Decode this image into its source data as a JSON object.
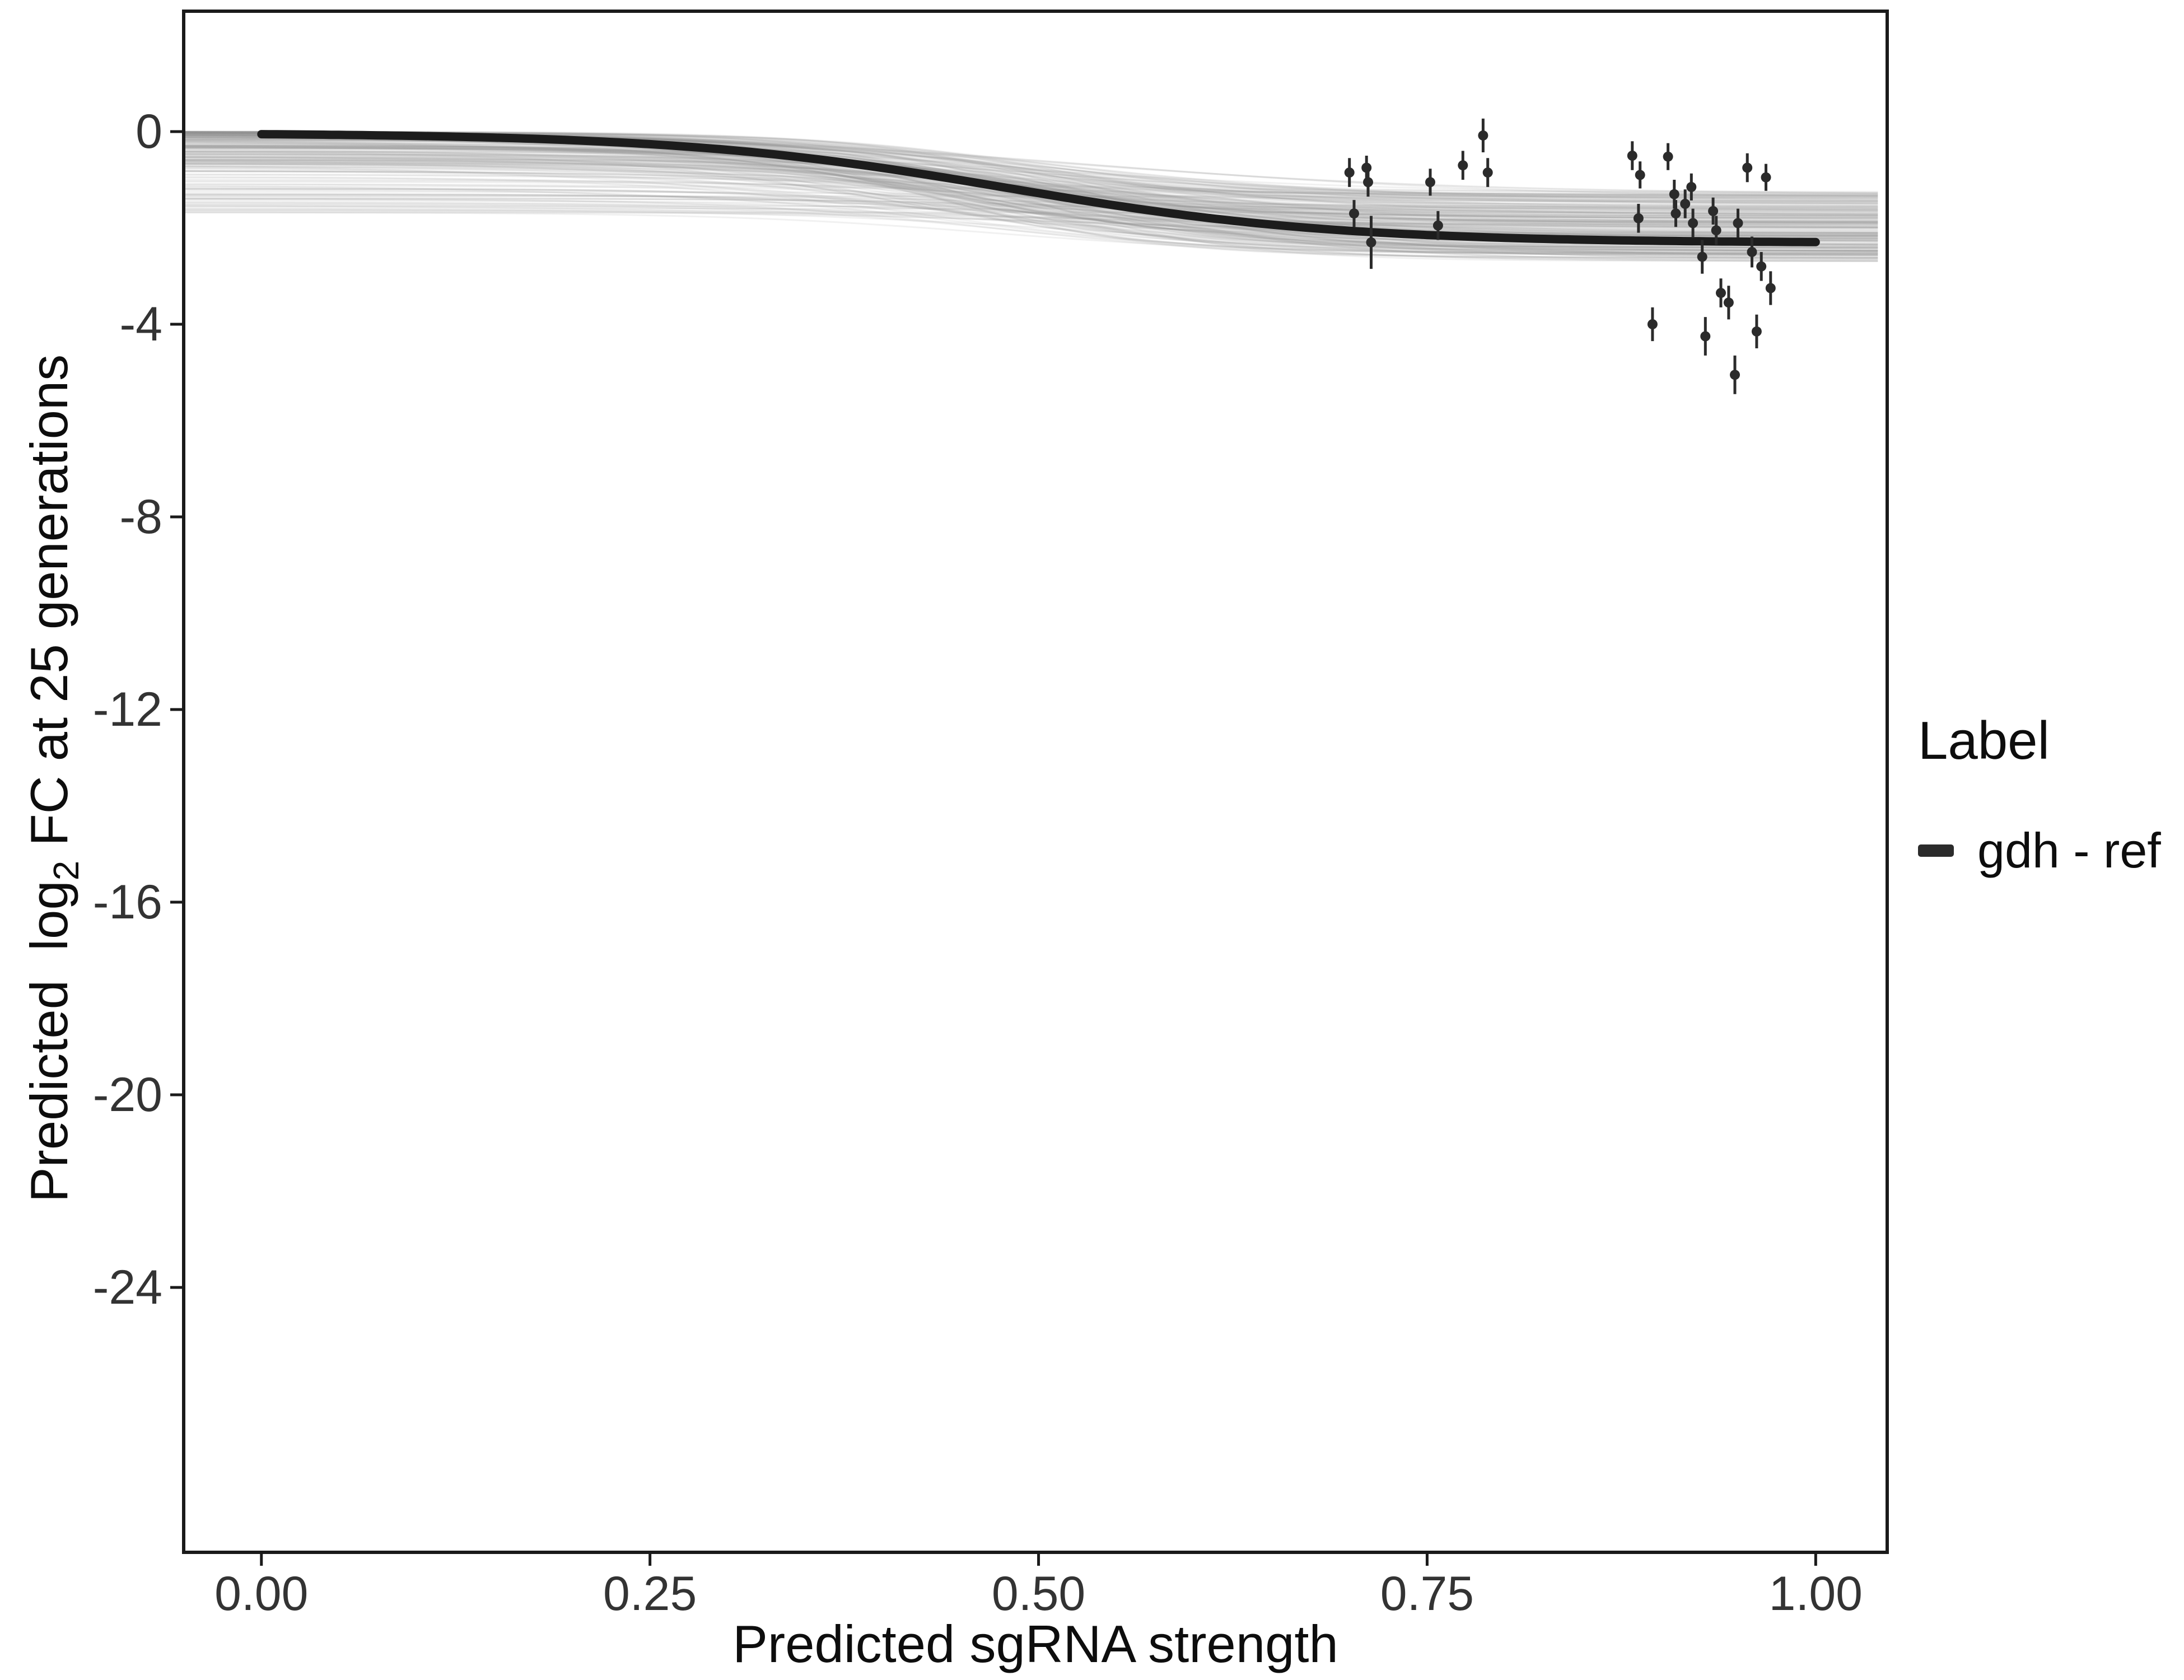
{
  "figure": {
    "background": "#ffffff"
  },
  "axes": {
    "x_title": "Predicted sgRNA strength",
    "y_title_prefix": "Predicted  log",
    "y_title_sub": "2",
    "y_title_suffix": " FC at 25 generations"
  },
  "legend": {
    "title": "Label",
    "entries": [
      {
        "label": "gdh - ref",
        "color": "#2b2b2b"
      }
    ]
  },
  "chart_data": {
    "type": "line+scatter",
    "title": "",
    "xlabel": "Predicted sgRNA strength",
    "ylabel": "Predicted log2 FC at 25 generations",
    "xlim": [
      -0.05,
      1.046
    ],
    "ylim": [
      -29.5,
      2.5
    ],
    "grid": "off",
    "legend_position": "right",
    "x_ticks": [
      {
        "value": 0.0,
        "label": "0.00"
      },
      {
        "value": 0.25,
        "label": "0.25"
      },
      {
        "value": 0.5,
        "label": "0.50"
      },
      {
        "value": 0.75,
        "label": "0.75"
      },
      {
        "value": 1.0,
        "label": "1.00"
      }
    ],
    "y_ticks": [
      {
        "value": 0,
        "label": "0"
      },
      {
        "value": -4,
        "label": "-4"
      },
      {
        "value": -8,
        "label": "-8"
      },
      {
        "value": -12,
        "label": "-12"
      },
      {
        "value": -16,
        "label": "-16"
      },
      {
        "value": -20,
        "label": "-20"
      },
      {
        "value": -24,
        "label": "-24"
      }
    ],
    "fit_curve": {
      "name": "gdh - ref",
      "model": "sigmoid",
      "base": -0.03,
      "depth": 2.28,
      "center": 0.48,
      "steepness": 9.5,
      "x_range": [
        0,
        1
      ],
      "color": "#1c1c1c",
      "line_width": 15
    },
    "uncertainty_band": {
      "description": "posterior draw curves around fit",
      "draws": 220,
      "seed": 42,
      "start_spread": 1.7,
      "end_range": [
        1.25,
        2.7
      ],
      "center_range": [
        0.42,
        0.54
      ],
      "steepness_range": [
        7,
        15
      ],
      "color": "#8f8f8f",
      "opacity": 0.13,
      "line_width": 3
    },
    "points": {
      "color": "#2b2b2b",
      "radius": 9,
      "error_bar_width": 5,
      "data": [
        {
          "x": 0.7,
          "y": -0.85,
          "err": 0.3
        },
        {
          "x": 0.703,
          "y": -1.7,
          "err": 0.28
        },
        {
          "x": 0.711,
          "y": -0.75,
          "err": 0.25
        },
        {
          "x": 0.712,
          "y": -1.05,
          "err": 0.3
        },
        {
          "x": 0.714,
          "y": -2.3,
          "err": 0.55
        },
        {
          "x": 0.752,
          "y": -1.05,
          "err": 0.28
        },
        {
          "x": 0.757,
          "y": -1.95,
          "err": 0.3
        },
        {
          "x": 0.773,
          "y": -0.7,
          "err": 0.3
        },
        {
          "x": 0.786,
          "y": -0.08,
          "err": 0.35
        },
        {
          "x": 0.789,
          "y": -0.85,
          "err": 0.3
        },
        {
          "x": 0.882,
          "y": -0.5,
          "err": 0.3
        },
        {
          "x": 0.887,
          "y": -0.9,
          "err": 0.28
        },
        {
          "x": 0.886,
          "y": -1.8,
          "err": 0.3
        },
        {
          "x": 0.895,
          "y": -4.0,
          "err": 0.35
        },
        {
          "x": 0.905,
          "y": -0.52,
          "err": 0.28
        },
        {
          "x": 0.909,
          "y": -1.3,
          "err": 0.3
        },
        {
          "x": 0.91,
          "y": -1.7,
          "err": 0.28
        },
        {
          "x": 0.916,
          "y": -1.5,
          "err": 0.3
        },
        {
          "x": 0.92,
          "y": -1.15,
          "err": 0.28
        },
        {
          "x": 0.921,
          "y": -1.9,
          "err": 0.3
        },
        {
          "x": 0.927,
          "y": -2.6,
          "err": 0.35
        },
        {
          "x": 0.929,
          "y": -4.25,
          "err": 0.4
        },
        {
          "x": 0.934,
          "y": -1.65,
          "err": 0.28
        },
        {
          "x": 0.936,
          "y": -2.05,
          "err": 0.3
        },
        {
          "x": 0.939,
          "y": -3.35,
          "err": 0.3
        },
        {
          "x": 0.944,
          "y": -3.55,
          "err": 0.35
        },
        {
          "x": 0.948,
          "y": -5.05,
          "err": 0.4
        },
        {
          "x": 0.95,
          "y": -1.9,
          "err": 0.3
        },
        {
          "x": 0.956,
          "y": -0.75,
          "err": 0.3
        },
        {
          "x": 0.959,
          "y": -2.5,
          "err": 0.32
        },
        {
          "x": 0.962,
          "y": -4.15,
          "err": 0.35
        },
        {
          "x": 0.965,
          "y": -2.8,
          "err": 0.3
        },
        {
          "x": 0.968,
          "y": -0.95,
          "err": 0.28
        },
        {
          "x": 0.971,
          "y": -3.25,
          "err": 0.35
        }
      ]
    },
    "panel_border_color": "#1a1a1a",
    "tick_color": "#1a1a1a"
  }
}
